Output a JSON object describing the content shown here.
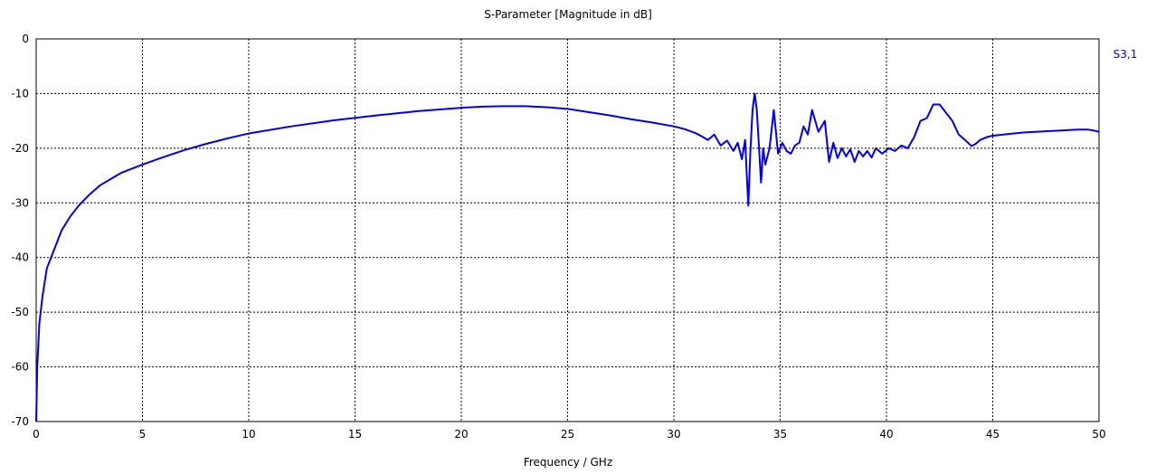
{
  "chart_data": {
    "type": "line",
    "title": "S-Parameter [Magnitude in dB]",
    "xlabel": "Frequency / GHz",
    "ylabel": "",
    "xlim": [
      0,
      50
    ],
    "ylim": [
      -70,
      0
    ],
    "xticks": [
      0,
      5,
      10,
      15,
      20,
      25,
      30,
      35,
      40,
      45,
      50
    ],
    "yticks": [
      0,
      -10,
      -20,
      -30,
      -40,
      -50,
      -60,
      -70
    ],
    "grid": true,
    "legend_position": "right",
    "colors": {
      "series": "#0000ee",
      "axis": "#000000",
      "grid": "#000000"
    },
    "series": [
      {
        "name": "S3,1",
        "x": [
          0,
          0.05,
          0.15,
          0.3,
          0.5,
          0.8,
          1.2,
          1.6,
          2,
          2.5,
          3,
          4,
          5,
          6,
          7,
          8,
          9,
          10,
          12,
          14,
          16,
          18,
          20,
          21,
          22,
          23,
          24,
          25,
          26,
          27,
          28,
          29,
          30,
          30.5,
          31,
          31.3,
          31.6,
          31.9,
          32.2,
          32.5,
          32.8,
          33,
          33.2,
          33.35,
          33.5,
          33.6,
          33.7,
          33.8,
          33.9,
          34,
          34.1,
          34.2,
          34.3,
          34.5,
          34.7,
          34.9,
          35.1,
          35.3,
          35.5,
          35.7,
          35.9,
          36.1,
          36.3,
          36.5,
          36.8,
          37.1,
          37.3,
          37.5,
          37.7,
          37.9,
          38.1,
          38.3,
          38.5,
          38.7,
          38.9,
          39.1,
          39.3,
          39.5,
          39.8,
          40.1,
          40.4,
          40.7,
          41,
          41.3,
          41.6,
          41.9,
          42.2,
          42.5,
          42.8,
          43.1,
          43.4,
          43.7,
          44,
          44.2,
          44.4,
          44.7,
          45,
          45.5,
          46,
          46.5,
          47,
          47.5,
          48,
          48.5,
          49,
          49.5,
          49.8,
          50
        ],
        "y": [
          -70,
          -60,
          -52,
          -47,
          -42,
          -39,
          -35,
          -32.5,
          -30.5,
          -28.5,
          -26.8,
          -24.5,
          -23,
          -21.6,
          -20.3,
          -19.2,
          -18.2,
          -17.3,
          -16,
          -14.9,
          -14,
          -13.2,
          -12.6,
          -12.4,
          -12.3,
          -12.3,
          -12.5,
          -12.8,
          -13.4,
          -14,
          -14.7,
          -15.3,
          -16,
          -16.5,
          -17.2,
          -17.8,
          -18.5,
          -17.5,
          -19.5,
          -18.6,
          -20.5,
          -19,
          -22,
          -18.5,
          -30.5,
          -20.5,
          -13,
          -10,
          -13,
          -19.5,
          -26.3,
          -20,
          -23,
          -20,
          -13,
          -21,
          -19,
          -20.5,
          -21,
          -19.5,
          -19,
          -16,
          -17.5,
          -13,
          -17,
          -15,
          -22.5,
          -19,
          -21.8,
          -20,
          -21.5,
          -20.2,
          -22.5,
          -20.5,
          -21.5,
          -20.5,
          -21.7,
          -20,
          -21,
          -20,
          -20.5,
          -19.5,
          -20,
          -18,
          -15,
          -14.5,
          -12,
          -12,
          -13.5,
          -15,
          -17.5,
          -18.5,
          -19.6,
          -19.2,
          -18.5,
          -18,
          -17.7,
          -17.5,
          -17.3,
          -17.1,
          -17,
          -16.9,
          -16.8,
          -16.7,
          -16.6,
          -16.6,
          -16.8,
          -17
        ]
      }
    ]
  }
}
